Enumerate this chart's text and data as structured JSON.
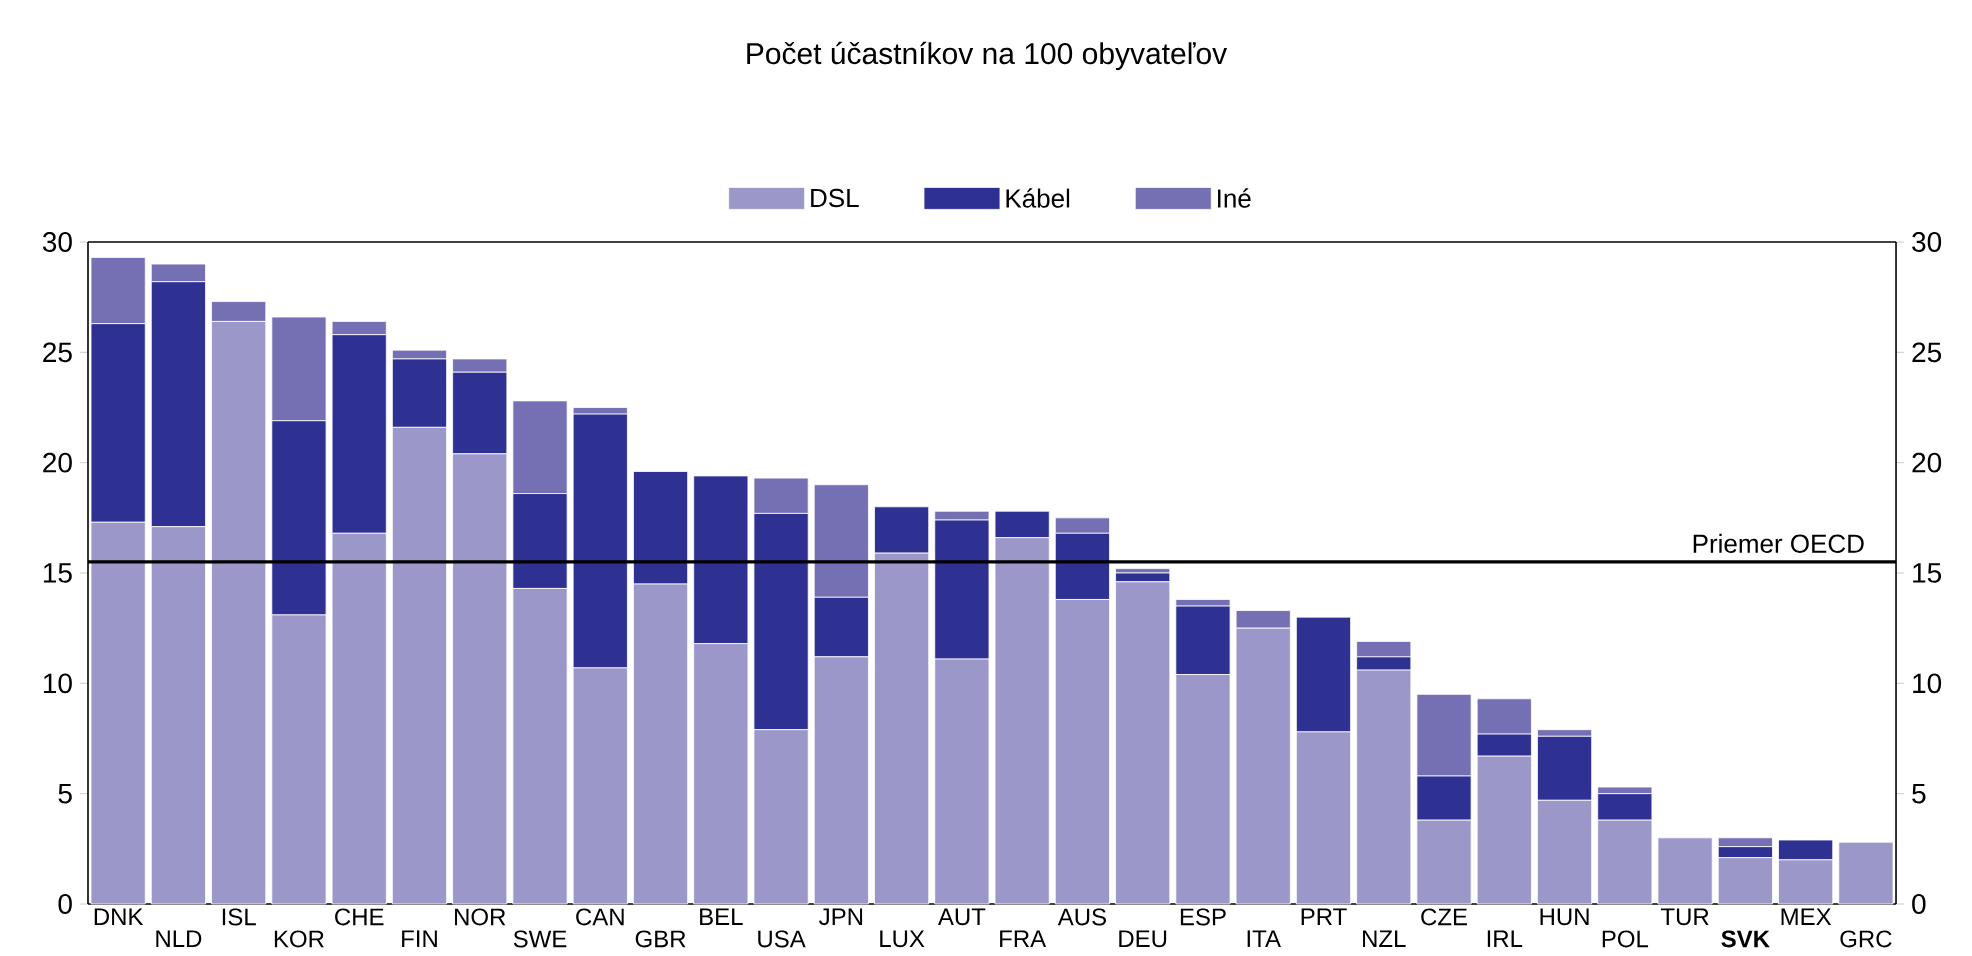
{
  "chart_data": {
    "type": "bar",
    "stacked": true,
    "title": "Počet účastníkov na 100 obyvateľov",
    "categories": [
      "DNK",
      "NLD",
      "ISL",
      "KOR",
      "CHE",
      "FIN",
      "NOR",
      "SWE",
      "CAN",
      "GBR",
      "BEL",
      "USA",
      "JPN",
      "LUX",
      "AUT",
      "FRA",
      "AUS",
      "DEU",
      "ESP",
      "ITA",
      "PRT",
      "NZL",
      "CZE",
      "IRL",
      "HUN",
      "POL",
      "TUR",
      "**SVK**",
      "MEX",
      "GRC"
    ],
    "series": [
      {
        "name": "DSL",
        "color": "#9b97c9",
        "values": [
          17.3,
          17.1,
          26.4,
          13.1,
          16.8,
          21.6,
          20.4,
          14.3,
          10.7,
          14.5,
          11.8,
          7.9,
          11.2,
          15.9,
          11.1,
          16.6,
          13.8,
          14.6,
          10.4,
          12.5,
          7.8,
          10.6,
          3.8,
          6.7,
          4.7,
          3.8,
          3.0,
          2.1,
          2.0,
          2.8
        ]
      },
      {
        "name": "Kábel",
        "color": "#2e3192",
        "values": [
          9.0,
          11.1,
          0,
          8.8,
          9.0,
          3.1,
          3.7,
          4.3,
          11.5,
          5.1,
          7.6,
          9.8,
          2.7,
          2.1,
          6.3,
          1.2,
          3.0,
          0.4,
          3.1,
          0,
          5.2,
          0.6,
          2.0,
          1.0,
          2.9,
          1.2,
          0,
          0.5,
          0.9,
          0
        ]
      },
      {
        "name": "Iné",
        "color": "#7570b3",
        "values": [
          3.0,
          0.8,
          0.9,
          4.7,
          0.6,
          0.4,
          0.6,
          4.2,
          0.3,
          0,
          0,
          1.6,
          5.1,
          0,
          0.4,
          0,
          0.7,
          0.2,
          0.3,
          0.8,
          0,
          0.7,
          3.7,
          1.6,
          0.3,
          0.3,
          0,
          0.4,
          0,
          0
        ]
      }
    ],
    "ylim": [
      0,
      30
    ],
    "yticks": [
      0,
      5,
      10,
      15,
      20,
      25,
      30
    ],
    "y2lim": [
      0,
      30
    ],
    "y2ticks": [
      0,
      5,
      10,
      15,
      20,
      25,
      30
    ],
    "ref_lines": [
      {
        "axis": "y",
        "value": 15.5,
        "label": "Priemer OECD",
        "color": "#000000"
      }
    ],
    "legend": "top",
    "grid": false
  }
}
